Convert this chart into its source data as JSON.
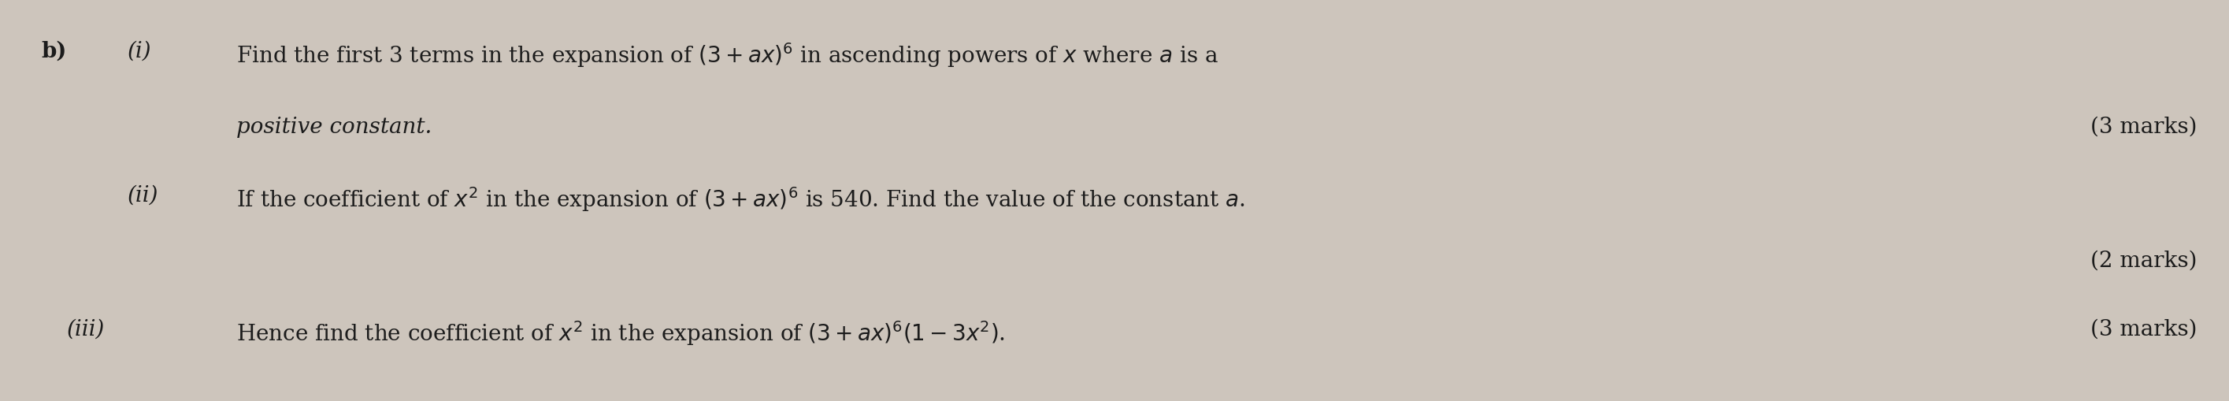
{
  "background_color": "#cdc5bc",
  "text_color": "#1c1c1c",
  "fig_width": 28.3,
  "fig_height": 5.09,
  "label_b": "b)",
  "label_i": "(i)",
  "label_ii": "(ii)",
  "label_iii": "(iii)",
  "line1_main": "Find the first 3 terms in the expansion of $(3 + ax)^6$ in ascending powers of $x$ where $a$ is a",
  "line1_cont": "positive constant.",
  "line1_marks": "(3 marks)",
  "line2_main": "If the coefficient of $x^2$ in the expansion of $(3 + ax)^6$ is 540. Find the value of the constant $a$.",
  "line2_marks": "(2 marks)",
  "line3_main": "Hence find the coefficient of $x^2$ in the expansion of $(3 + ax)^6(1 - 3x^2)$.",
  "line3_marks": "(3 marks)",
  "font_size_main": 20,
  "font_size_label": 20,
  "font_size_marks": 20
}
